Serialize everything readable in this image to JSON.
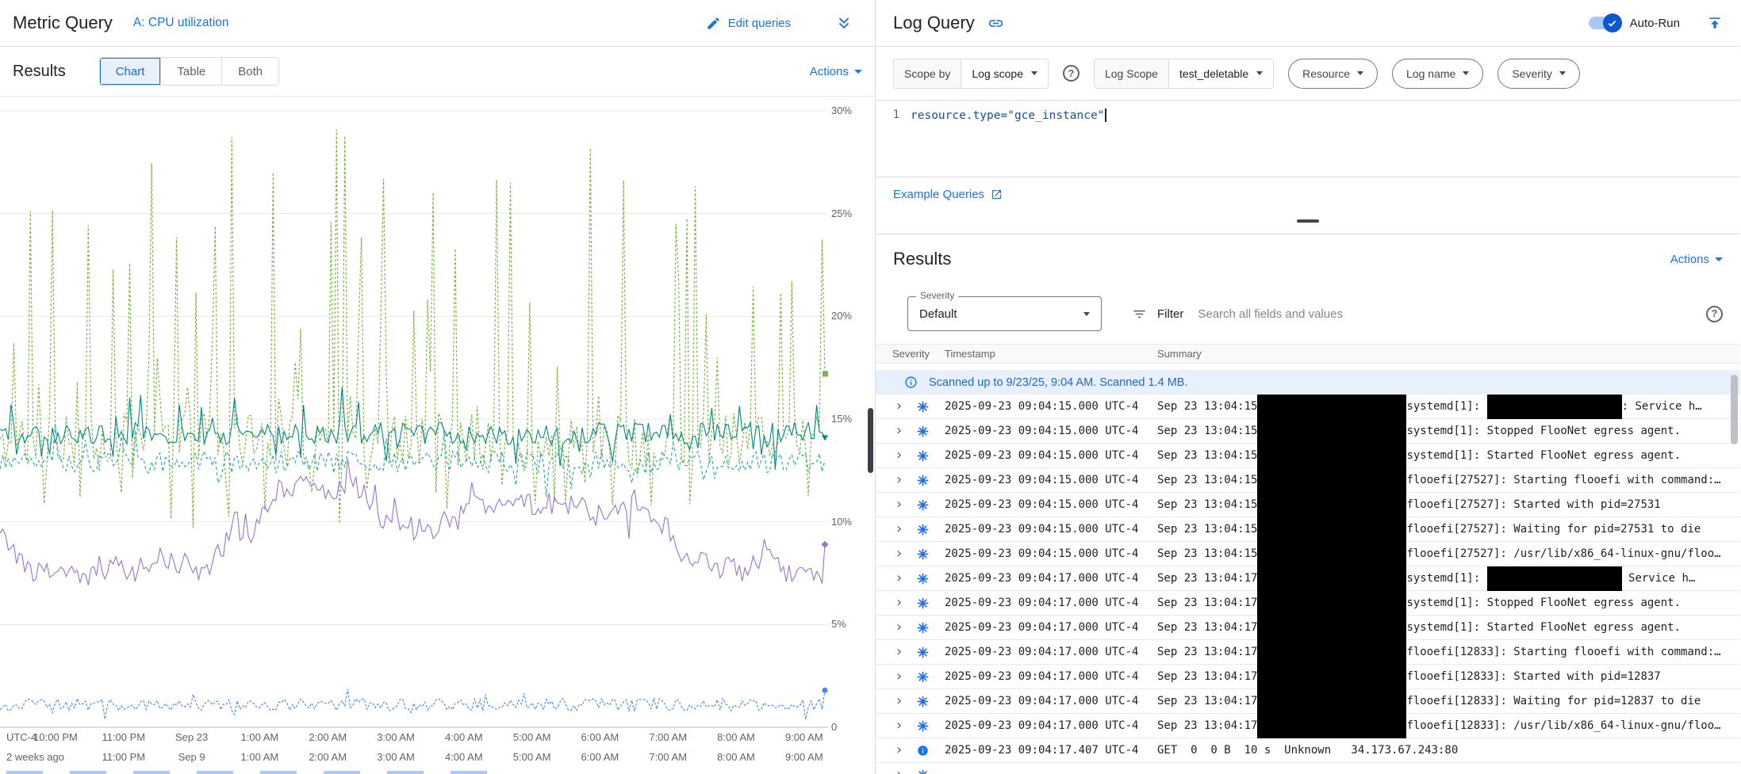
{
  "metric_panel": {
    "title": "Metric Query",
    "query_label": "A: CPU utilization",
    "edit_queries_label": "Edit queries",
    "results_title": "Results",
    "view_tabs": [
      {
        "label": "Chart",
        "selected": true
      },
      {
        "label": "Table",
        "selected": false
      },
      {
        "label": "Both",
        "selected": false
      }
    ],
    "actions_label": "Actions",
    "chart_data": {
      "type": "line",
      "title": "CPU utilization",
      "ylim": [
        0,
        30
      ],
      "grid": true,
      "legend": "none",
      "y_ticks": [
        "30%",
        "25%",
        "20%",
        "15%",
        "10%",
        "5%",
        "0"
      ],
      "x_ticks_row1": [
        "UTC-4",
        "10:00 PM",
        "11:00 PM",
        "Sep 23",
        "1:00 AM",
        "2:00 AM",
        "3:00 AM",
        "4:00 AM",
        "5:00 AM",
        "6:00 AM",
        "7:00 AM",
        "8:00 AM",
        "9:00 AM"
      ],
      "x_ticks_row2": [
        "2 weeks ago",
        "11:00 PM",
        "Sep 9",
        "1:00 AM",
        "2:00 AM",
        "3:00 AM",
        "4:00 AM",
        "5:00 AM",
        "6:00 AM",
        "7:00 AM",
        "8:00 AM",
        "9:00 AM"
      ],
      "series": [
        {
          "name": "green",
          "color": "#7cb342",
          "dash": "3 2.5",
          "width": 1.2,
          "base": 14,
          "noise": 1.3,
          "spike_prob": 0.2,
          "spike_min": 2,
          "spike_max": 15,
          "dip_prob": 0.12,
          "dip_min": 1.5,
          "dip_max": 4,
          "walk": 0,
          "seed": 11,
          "marker": "square",
          "end_value": 17.2
        },
        {
          "name": "teal",
          "color": "#00897b",
          "dash": "",
          "width": 1.1,
          "base": 14.3,
          "noise": 0.55,
          "spike_prob": 0.05,
          "spike_min": 0.4,
          "spike_max": 2.2,
          "dip_prob": 0.05,
          "dip_min": 0.4,
          "dip_max": 1.5,
          "walk": 0,
          "seed": 5,
          "marker": "triangle",
          "end_value": 14.1
        },
        {
          "name": "cyan",
          "color": "#26a69a",
          "dash": "4 3",
          "width": 1.1,
          "base": 12.9,
          "noise": 0.55,
          "spike_prob": 0.04,
          "spike_min": 0.4,
          "spike_max": 1.8,
          "dip_prob": 0.04,
          "dip_min": 0.4,
          "dip_max": 1.2,
          "walk": 0,
          "seed": 9,
          "marker": "none",
          "end_value": 13.0
        },
        {
          "name": "purple",
          "color": "#9575cd",
          "dash": "",
          "width": 1.1,
          "base": 9.6,
          "noise": 0.5,
          "spike_prob": 0.02,
          "spike_min": 0.4,
          "spike_max": 1.4,
          "dip_prob": 0.02,
          "dip_min": 0.4,
          "dip_max": 1.2,
          "walk": 0.9,
          "seed": 17,
          "marker": "diamond",
          "end_value": 8.9
        },
        {
          "name": "blue",
          "color": "#4285f4",
          "dash": "3 2",
          "width": 1.1,
          "base": 1.1,
          "noise": 0.3,
          "spike_prob": 0.02,
          "spike_min": 0.2,
          "spike_max": 0.6,
          "dip_prob": 0.02,
          "dip_min": 0.2,
          "dip_max": 0.5,
          "walk": 0,
          "seed": 23,
          "marker": "circle",
          "end_value": 1.8
        }
      ]
    }
  },
  "log_panel": {
    "title": "Log Query",
    "auto_run_label": "Auto-Run",
    "scope_bar": {
      "scope_by": "Scope by",
      "scope_value": "Log scope",
      "log_scope_label": "Log Scope",
      "log_scope_value": "test_deletable",
      "resource_label": "Resource",
      "log_name_label": "Log name",
      "severity_label": "Severity"
    },
    "editor": {
      "line_number": "1",
      "code": "resource.type=\"gce_instance\""
    },
    "example_queries_label": "Example Queries",
    "results_title": "Results",
    "actions_label": "Actions",
    "filter_bar": {
      "severity_float_label": "Severity",
      "severity_value": "Default",
      "filter_label": "Filter",
      "search_placeholder": "Search all fields and values"
    },
    "table": {
      "columns": [
        "Severity",
        "Timestamp",
        "Summary"
      ],
      "scan_banner": "Scanned up to 9/23/25, 9:04 AM. Scanned 1.4 MB.",
      "rows": [
        {
          "icon": "default",
          "timestamp": "2025-09-23 09:04:15.000 UTC-4",
          "parts": [
            {
              "t": "Sep 23 13:04:15"
            },
            {
              "r": "lg"
            },
            {
              "t": "systemd[1]: "
            },
            {
              "r": "md"
            },
            {
              "t": ": Service h…"
            }
          ]
        },
        {
          "icon": "default",
          "timestamp": "2025-09-23 09:04:15.000 UTC-4",
          "parts": [
            {
              "t": "Sep 23 13:04:15"
            },
            {
              "r": "lg"
            },
            {
              "t": "systemd[1]: Stopped FlooNet egress agent."
            }
          ]
        },
        {
          "icon": "default",
          "timestamp": "2025-09-23 09:04:15.000 UTC-4",
          "parts": [
            {
              "t": "Sep 23 13:04:15"
            },
            {
              "r": "lg"
            },
            {
              "t": "systemd[1]: Started FlooNet egress agent."
            }
          ]
        },
        {
          "icon": "default",
          "timestamp": "2025-09-23 09:04:15.000 UTC-4",
          "parts": [
            {
              "t": "Sep 23 13:04:15"
            },
            {
              "r": "lg"
            },
            {
              "t": "flooefi[27527]: Starting flooefi with command:…"
            }
          ]
        },
        {
          "icon": "default",
          "timestamp": "2025-09-23 09:04:15.000 UTC-4",
          "parts": [
            {
              "t": "Sep 23 13:04:15"
            },
            {
              "r": "lg"
            },
            {
              "t": "flooefi[27527]: Started with pid=27531"
            }
          ]
        },
        {
          "icon": "default",
          "timestamp": "2025-09-23 09:04:15.000 UTC-4",
          "parts": [
            {
              "t": "Sep 23 13:04:15"
            },
            {
              "r": "lg"
            },
            {
              "t": "flooefi[27527]: Waiting for pid=27531 to die"
            }
          ]
        },
        {
          "icon": "default",
          "timestamp": "2025-09-23 09:04:15.000 UTC-4",
          "parts": [
            {
              "t": "Sep 23 13:04:15"
            },
            {
              "r": "lg"
            },
            {
              "t": "flooefi[27527]: /usr/lib/x86_64-linux-gnu/floo…"
            }
          ]
        },
        {
          "icon": "default",
          "timestamp": "2025-09-23 09:04:17.000 UTC-4",
          "parts": [
            {
              "t": "Sep 23 13:04:17"
            },
            {
              "r": "lg"
            },
            {
              "t": "systemd[1]: "
            },
            {
              "r": "md"
            },
            {
              "t": " Service h…"
            }
          ]
        },
        {
          "icon": "default",
          "timestamp": "2025-09-23 09:04:17.000 UTC-4",
          "parts": [
            {
              "t": "Sep 23 13:04:17"
            },
            {
              "r": "lg"
            },
            {
              "t": "systemd[1]: Stopped FlooNet egress agent."
            }
          ]
        },
        {
          "icon": "default",
          "timestamp": "2025-09-23 09:04:17.000 UTC-4",
          "parts": [
            {
              "t": "Sep 23 13:04:17"
            },
            {
              "r": "lg"
            },
            {
              "t": "systemd[1]: Started FlooNet egress agent."
            }
          ]
        },
        {
          "icon": "default",
          "timestamp": "2025-09-23 09:04:17.000 UTC-4",
          "parts": [
            {
              "t": "Sep 23 13:04:17"
            },
            {
              "r": "lg"
            },
            {
              "t": "flooefi[12833]: Starting flooefi with command:…"
            }
          ]
        },
        {
          "icon": "default",
          "timestamp": "2025-09-23 09:04:17.000 UTC-4",
          "parts": [
            {
              "t": "Sep 23 13:04:17"
            },
            {
              "r": "lg"
            },
            {
              "t": "flooefi[12833]: Started with pid=12837"
            }
          ]
        },
        {
          "icon": "default",
          "timestamp": "2025-09-23 09:04:17.000 UTC-4",
          "parts": [
            {
              "t": "Sep 23 13:04:17"
            },
            {
              "r": "lg"
            },
            {
              "t": "flooefi[12833]: Waiting for pid=12837 to die"
            }
          ]
        },
        {
          "icon": "default",
          "timestamp": "2025-09-23 09:04:17.000 UTC-4",
          "parts": [
            {
              "t": "Sep 23 13:04:17"
            },
            {
              "r": "lg"
            },
            {
              "t": "flooefi[12833]: /usr/lib/x86_64-linux-gnu/floo…"
            }
          ]
        },
        {
          "icon": "info",
          "timestamp": "2025-09-23 09:04:17.407 UTC-4",
          "parts": [
            {
              "t": "GET  0  0 B  10 s  Unknown   34.173.67.243:80"
            }
          ]
        },
        {
          "icon": "default",
          "timestamp": "",
          "parts": [],
          "partial": true
        }
      ]
    }
  }
}
